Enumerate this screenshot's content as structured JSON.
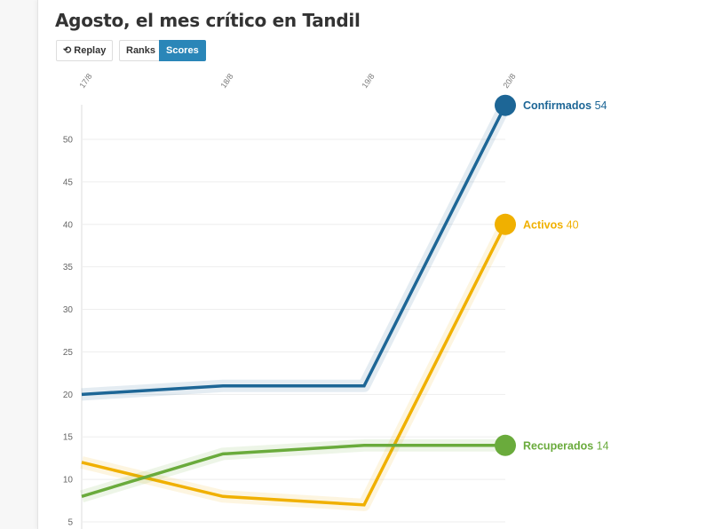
{
  "title": "Agosto, el mes crítico en Tandil",
  "controls": {
    "replay_label": "Replay",
    "replay_icon": "replay-icon",
    "ranks_label": "Ranks",
    "scores_label": "Scores",
    "active": "Scores",
    "accent": "#2a86b8"
  },
  "chart_data": {
    "type": "line",
    "title": "Agosto, el mes crítico en Tandil",
    "x": [
      "17/8",
      "18/8",
      "19/8",
      "20/8"
    ],
    "yticks": [
      5,
      10,
      15,
      20,
      25,
      30,
      35,
      40,
      45,
      50
    ],
    "ylim": [
      5,
      55
    ],
    "grid": true,
    "legend": "end-labels",
    "series": [
      {
        "name": "Confirmados",
        "color": "#1d6696",
        "values": [
          20,
          21,
          21,
          54
        ]
      },
      {
        "name": "Activos",
        "color": "#f0b000",
        "values": [
          12,
          8,
          7,
          40
        ]
      },
      {
        "name": "Recuperados",
        "color": "#6aab3c",
        "values": [
          8,
          13,
          14,
          14
        ]
      }
    ]
  }
}
